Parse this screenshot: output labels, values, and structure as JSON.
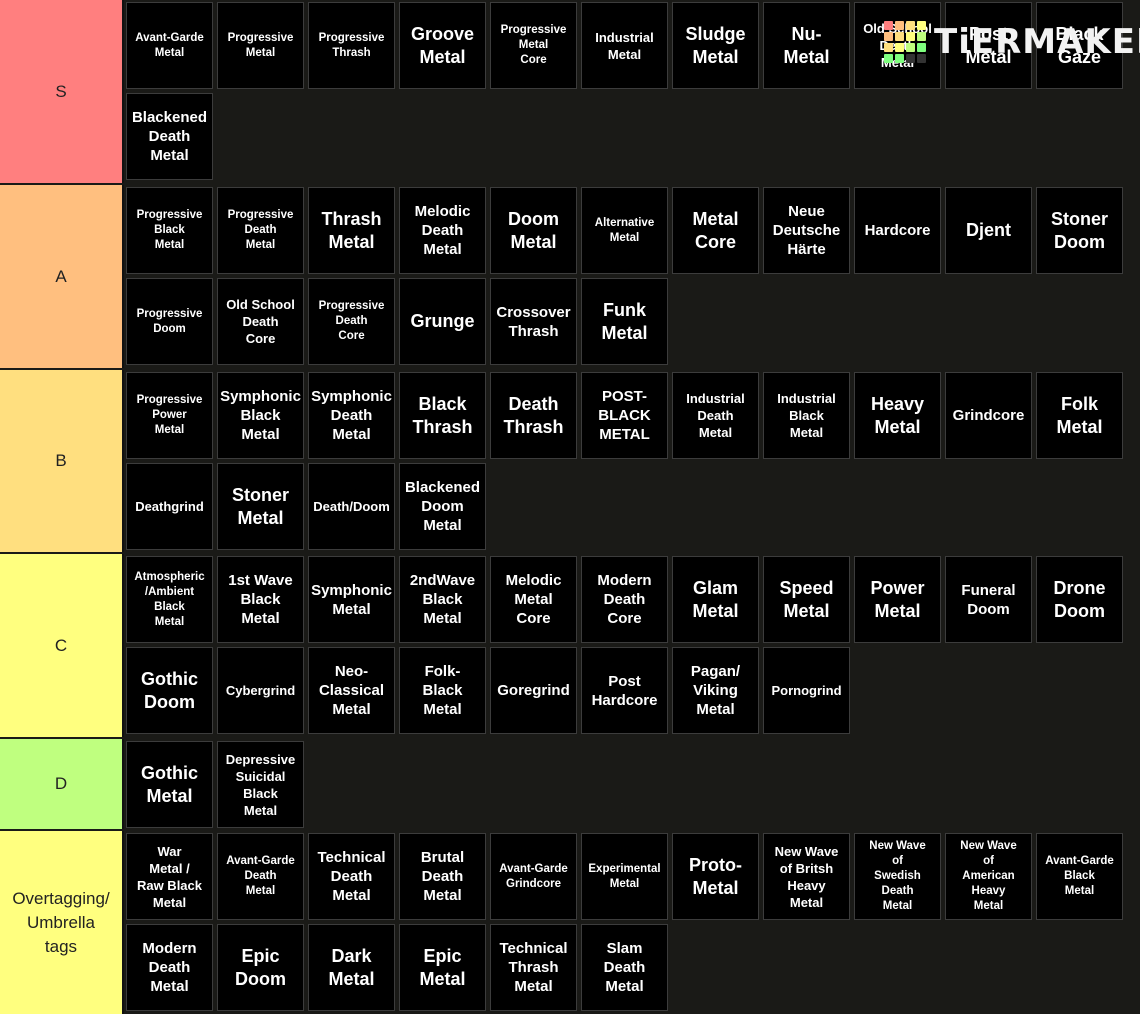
{
  "logo": {
    "text": "TiERMAKER",
    "grid_colors": [
      "#ff7f7f",
      "#ffbf7f",
      "#ffdf7f",
      "#ffff7f",
      "#ffbf7f",
      "#ffdf7f",
      "#ffff7f",
      "#bfff7f",
      "#ffdf7f",
      "#ffff7f",
      "#bfff7f",
      "#7fff7f",
      "#7fff7f",
      "#7fff7f",
      "#333333",
      "#333333"
    ]
  },
  "tiers": [
    {
      "label": "S",
      "color": "#ff7f7f",
      "items": [
        "Avant-Garde\nMetal",
        "Progressive\nMetal",
        "Progressive\nThrash",
        "Groove\nMetal",
        "Progressive\nMetal\nCore",
        "Industrial\nMetal",
        "Sludge\nMetal",
        "Nu-\nMetal",
        "Old School\nDeath\nMetal",
        "Post\nMetal",
        "Black\nGaze",
        "Blackened\nDeath\nMetal"
      ]
    },
    {
      "label": "A",
      "color": "#ffbf7f",
      "items": [
        "Progressive\nBlack\nMetal",
        "Progressive\nDeath\nMetal",
        "Thrash\nMetal",
        "Melodic\nDeath\nMetal",
        "Doom\nMetal",
        "Alternative\nMetal",
        "Metal\nCore",
        "Neue\nDeutsche\nHärte",
        "Hardcore",
        "Djent",
        "Stoner\nDoom",
        "Progressive\nDoom",
        "Old School\nDeath\nCore",
        "Progressive\nDeath\nCore",
        "Grunge",
        "Crossover\nThrash",
        "Funk\nMetal"
      ]
    },
    {
      "label": "B",
      "color": "#ffdf7f",
      "items": [
        "Progressive\nPower\nMetal",
        "Symphonic\nBlack\nMetal",
        "Symphonic\nDeath\nMetal",
        "Black\nThrash",
        "Death\nThrash",
        "POST-\nBLACK\nMETAL",
        "Industrial\nDeath\nMetal",
        "Industrial\nBlack\nMetal",
        "Heavy\nMetal",
        "Grindcore",
        "Folk\nMetal",
        "Deathgrind",
        "Stoner\nMetal",
        "Death/Doom",
        "Blackened\nDoom\nMetal"
      ]
    },
    {
      "label": "C",
      "color": "#ffff7f",
      "items": [
        "Atmospheric\n/Ambient\nBlack\nMetal",
        "1st Wave\nBlack\nMetal",
        "Symphonic\nMetal",
        "2ndWave\nBlack\nMetal",
        "Melodic\nMetal\nCore",
        "Modern\nDeath\nCore",
        "Glam\nMetal",
        "Speed\nMetal",
        "Power\nMetal",
        "Funeral\nDoom",
        "Drone\nDoom",
        "Gothic\nDoom",
        "Cybergrind",
        "Neo-\nClassical\nMetal",
        "Folk-\nBlack\nMetal",
        "Goregrind",
        "Post\nHardcore",
        "Pagan/\nViking\nMetal",
        "Pornogrind"
      ]
    },
    {
      "label": "D",
      "color": "#bfff7f",
      "items": [
        "Gothic\nMetal",
        "Depressive\nSuicidal\nBlack\nMetal"
      ]
    },
    {
      "label": "Overtagging/\nUmbrella\ntags",
      "color": "#ffff7f",
      "items": [
        "War\nMetal /\nRaw Black\nMetal",
        "Avant-Garde\nDeath\nMetal",
        "Technical\nDeath\nMetal",
        "Brutal\nDeath\nMetal",
        "Avant-Garde\nGrindcore",
        "Experimental\nMetal",
        "Proto-\nMetal",
        "New Wave\nof Britsh\nHeavy\nMetal",
        "New Wave\nof\nSwedish\nDeath\nMetal",
        "New Wave\nof\nAmerican\nHeavy\nMetal",
        "Avant-Garde\nBlack\nMetal",
        "Modern\nDeath\nMetal",
        "Epic\nDoom",
        "Dark\nMetal",
        "Epic\nMetal",
        "Technical\nThrash\nMetal",
        "Slam\nDeath\nMetal"
      ]
    }
  ]
}
